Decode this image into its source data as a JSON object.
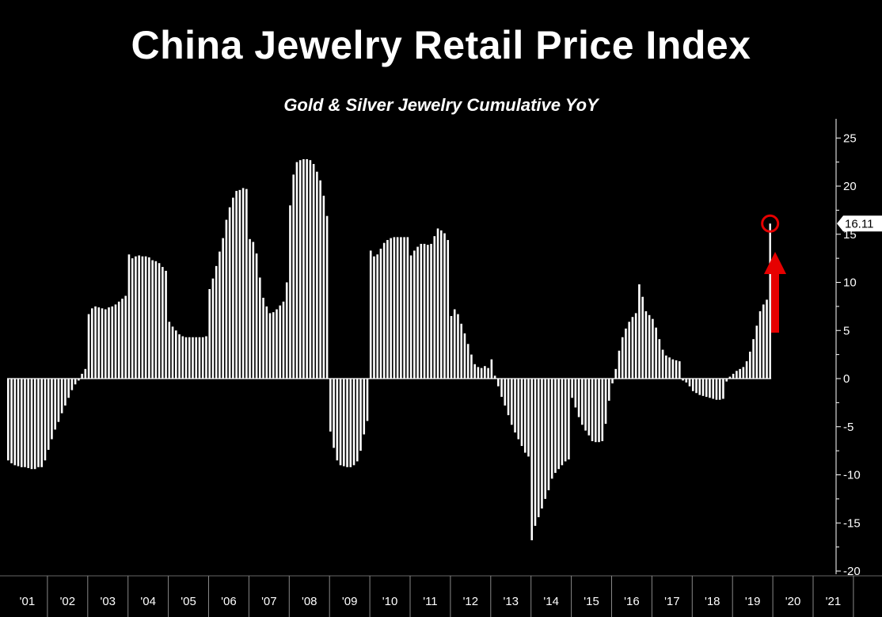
{
  "colors": {
    "background": "#000000",
    "bars": "#ffffff",
    "highlight": "#e60000",
    "axis": "#ffffff"
  },
  "chart_data": {
    "type": "bar",
    "title": "China Jewelry Retail Price Index",
    "subtitle": "Gold & Silver Jewelry Cumulative YoY",
    "xlabel": "",
    "ylabel": "",
    "ylim": [
      -20,
      25
    ],
    "y_ticks": [
      25,
      20,
      15,
      10,
      5,
      0,
      -5,
      -10,
      -15,
      -20
    ],
    "year_labels": [
      "'01",
      "'02",
      "'03",
      "'04",
      "'05",
      "'06",
      "'07",
      "'08",
      "'09",
      "'10",
      "'11",
      "'12",
      "'13",
      "'14",
      "'15",
      "'16",
      "'17",
      "'18",
      "'19",
      "'20",
      "'21"
    ],
    "start": "2001-01",
    "frequency": "monthly",
    "grid": false,
    "y_axis_side": "right",
    "values": [
      -8.5,
      -8.8,
      -9.0,
      -9.1,
      -9.2,
      -9.2,
      -9.3,
      -9.4,
      -9.4,
      -9.2,
      -9.2,
      -8.5,
      -7.4,
      -6.3,
      -5.3,
      -4.5,
      -3.6,
      -2.8,
      -2.0,
      -1.2,
      -0.6,
      -0.2,
      0.5,
      1.0,
      6.7,
      7.3,
      7.5,
      7.4,
      7.3,
      7.2,
      7.4,
      7.5,
      7.7,
      8.0,
      8.3,
      8.6,
      12.9,
      12.5,
      12.7,
      12.8,
      12.7,
      12.7,
      12.6,
      12.3,
      12.2,
      12.0,
      11.6,
      11.2,
      5.9,
      5.4,
      5.0,
      4.6,
      4.4,
      4.3,
      4.3,
      4.3,
      4.3,
      4.3,
      4.3,
      4.4,
      9.3,
      10.4,
      11.7,
      13.2,
      14.6,
      16.5,
      17.8,
      18.8,
      19.5,
      19.6,
      19.8,
      19.7,
      14.5,
      14.2,
      13.0,
      10.5,
      8.4,
      7.5,
      6.8,
      6.9,
      7.2,
      7.6,
      8.0,
      10.0,
      18.0,
      21.2,
      22.5,
      22.7,
      22.8,
      22.8,
      22.7,
      22.3,
      21.5,
      20.6,
      19.0,
      16.9,
      -5.5,
      -7.2,
      -8.5,
      -9.0,
      -9.1,
      -9.2,
      -9.2,
      -9.0,
      -8.6,
      -7.5,
      -5.8,
      -4.4,
      13.3,
      12.7,
      12.9,
      13.5,
      14.1,
      14.4,
      14.6,
      14.7,
      14.7,
      14.7,
      14.7,
      14.7,
      12.8,
      13.3,
      13.7,
      14.0,
      14.0,
      13.9,
      14.0,
      14.8,
      15.6,
      15.4,
      15.1,
      14.4,
      6.5,
      7.2,
      6.7,
      5.7,
      4.7,
      3.6,
      2.5,
      1.5,
      1.2,
      1.1,
      1.3,
      1.1,
      2.0,
      0.3,
      -0.8,
      -1.9,
      -2.8,
      -3.8,
      -4.8,
      -5.6,
      -6.3,
      -7.0,
      -7.7,
      -8.1,
      -16.8,
      -15.3,
      -14.4,
      -13.5,
      -12.5,
      -11.6,
      -10.4,
      -9.8,
      -9.4,
      -9.0,
      -8.6,
      -8.4,
      -2.0,
      -3.0,
      -4.0,
      -4.8,
      -5.4,
      -5.9,
      -6.5,
      -6.6,
      -6.6,
      -6.5,
      -4.7,
      -2.3,
      -0.5,
      1.0,
      2.9,
      4.3,
      5.2,
      5.9,
      6.4,
      6.8,
      9.8,
      8.5,
      7.0,
      6.6,
      6.2,
      5.3,
      4.1,
      3.0,
      2.4,
      2.2,
      2.0,
      1.9,
      1.8,
      -0.2,
      -0.4,
      -0.8,
      -1.3,
      -1.5,
      -1.7,
      -1.8,
      -1.9,
      -2.0,
      -2.1,
      -2.2,
      -2.2,
      -2.1,
      -0.3,
      0.2,
      0.5,
      0.8,
      1.0,
      1.2,
      1.8,
      2.8,
      4.1,
      5.5,
      7.0,
      7.7,
      8.2,
      16.11
    ],
    "annotations": [
      {
        "label": "16.11",
        "value": 16.11,
        "marker": "circle",
        "arrow": "up"
      }
    ]
  }
}
